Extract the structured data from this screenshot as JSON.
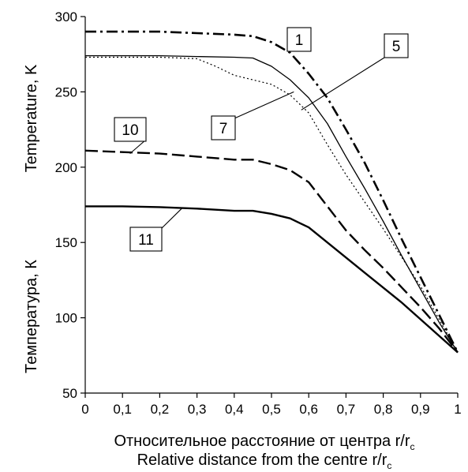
{
  "chart_data": {
    "type": "line",
    "xlabel_ru": "Относительное расстояние от центра r/r",
    "xlabel_en": "Relative distance from the centre r/r",
    "xlabel_sub": "c",
    "ylabel_ru": "Температура, К",
    "ylabel_en": "Temperature, K",
    "xlim": [
      0,
      1
    ],
    "ylim": [
      50,
      300
    ],
    "x_ticks": [
      "0",
      "0,1",
      "0,2",
      "0,3",
      "0,4",
      "0,5",
      "0,6",
      "0,7",
      "0,8",
      "0,9",
      "1"
    ],
    "y_ticks": [
      "50",
      "100",
      "150",
      "200",
      "250",
      "300"
    ],
    "grid": false,
    "series": [
      {
        "name": "1",
        "style": "dashdot",
        "points": [
          [
            0,
            290
          ],
          [
            0.2,
            290
          ],
          [
            0.3,
            289
          ],
          [
            0.4,
            288
          ],
          [
            0.45,
            287
          ],
          [
            0.5,
            283
          ],
          [
            0.55,
            276
          ],
          [
            0.6,
            262
          ],
          [
            0.65,
            246
          ],
          [
            0.7,
            225
          ],
          [
            0.75,
            203
          ],
          [
            0.8,
            178
          ],
          [
            0.85,
            152
          ],
          [
            0.9,
            127
          ],
          [
            0.95,
            102
          ],
          [
            1,
            77
          ]
        ]
      },
      {
        "name": "5",
        "style": "solid-thin",
        "points": [
          [
            0,
            274
          ],
          [
            0.2,
            274
          ],
          [
            0.3,
            273.5
          ],
          [
            0.4,
            273
          ],
          [
            0.45,
            272.5
          ],
          [
            0.5,
            267
          ],
          [
            0.55,
            258
          ],
          [
            0.6,
            246
          ],
          [
            0.65,
            229
          ],
          [
            0.7,
            207
          ],
          [
            0.75,
            186
          ],
          [
            0.8,
            164
          ],
          [
            0.85,
            141
          ],
          [
            0.9,
            119
          ],
          [
            0.95,
            97
          ],
          [
            1,
            77
          ]
        ]
      },
      {
        "name": "7",
        "style": "dotted",
        "points": [
          [
            0,
            273
          ],
          [
            0.2,
            273
          ],
          [
            0.3,
            272
          ],
          [
            0.35,
            267
          ],
          [
            0.4,
            261
          ],
          [
            0.45,
            258
          ],
          [
            0.5,
            255
          ],
          [
            0.55,
            248
          ],
          [
            0.6,
            236
          ],
          [
            0.65,
            215
          ],
          [
            0.7,
            195
          ],
          [
            0.75,
            177
          ],
          [
            0.8,
            159
          ],
          [
            0.85,
            140
          ],
          [
            0.9,
            121
          ],
          [
            0.95,
            99
          ],
          [
            1,
            77
          ]
        ]
      },
      {
        "name": "10",
        "style": "dashed",
        "points": [
          [
            0,
            211
          ],
          [
            0.2,
            209
          ],
          [
            0.3,
            207
          ],
          [
            0.4,
            205
          ],
          [
            0.45,
            205
          ],
          [
            0.5,
            202
          ],
          [
            0.55,
            198
          ],
          [
            0.6,
            190
          ],
          [
            0.65,
            174
          ],
          [
            0.7,
            158
          ],
          [
            0.75,
            145
          ],
          [
            0.8,
            133
          ],
          [
            0.85,
            120
          ],
          [
            0.9,
            107
          ],
          [
            0.95,
            93
          ],
          [
            1,
            77
          ]
        ]
      },
      {
        "name": "11",
        "style": "solid-thick",
        "points": [
          [
            0,
            174
          ],
          [
            0.1,
            174
          ],
          [
            0.2,
            173.5
          ],
          [
            0.3,
            172.5
          ],
          [
            0.4,
            171
          ],
          [
            0.45,
            171
          ],
          [
            0.5,
            169
          ],
          [
            0.55,
            166
          ],
          [
            0.6,
            160
          ],
          [
            0.65,
            150
          ],
          [
            0.7,
            140
          ],
          [
            0.75,
            130
          ],
          [
            0.8,
            120
          ],
          [
            0.85,
            110
          ],
          [
            0.9,
            99
          ],
          [
            0.95,
            88
          ],
          [
            1,
            77
          ]
        ]
      }
    ],
    "callouts": [
      {
        "series": "1",
        "label": "1"
      },
      {
        "series": "5",
        "label": "5"
      },
      {
        "series": "7",
        "label": "7"
      },
      {
        "series": "10",
        "label": "10"
      },
      {
        "series": "11",
        "label": "11"
      }
    ]
  }
}
